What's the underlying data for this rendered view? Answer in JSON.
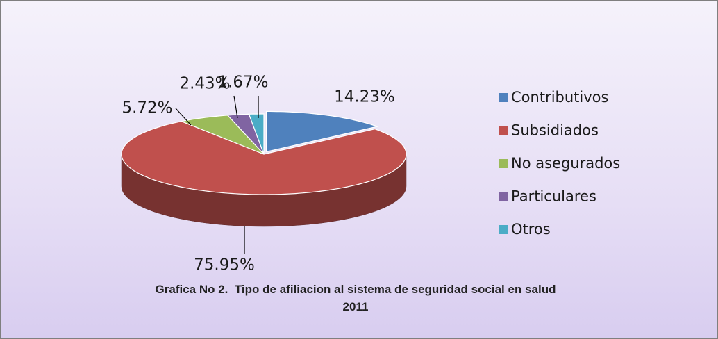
{
  "chart_data": {
    "type": "pie",
    "title": "Grafica No 2.  Tipo de afiliacion al sistema de seguridad social en salud  2011",
    "categories": [
      "Contributivos",
      "Subsidiados",
      "No asegurados",
      "Particulares",
      "Otros"
    ],
    "values": [
      14.23,
      75.95,
      5.72,
      2.43,
      1.67
    ],
    "value_labels": [
      "14.23%",
      "75.95%",
      "5.72%",
      "2.43%",
      "1.67%"
    ],
    "colors": [
      "#4f81bd",
      "#c0504d",
      "#9bbb59",
      "#8064a2",
      "#4bacc6"
    ],
    "legend": "right"
  }
}
